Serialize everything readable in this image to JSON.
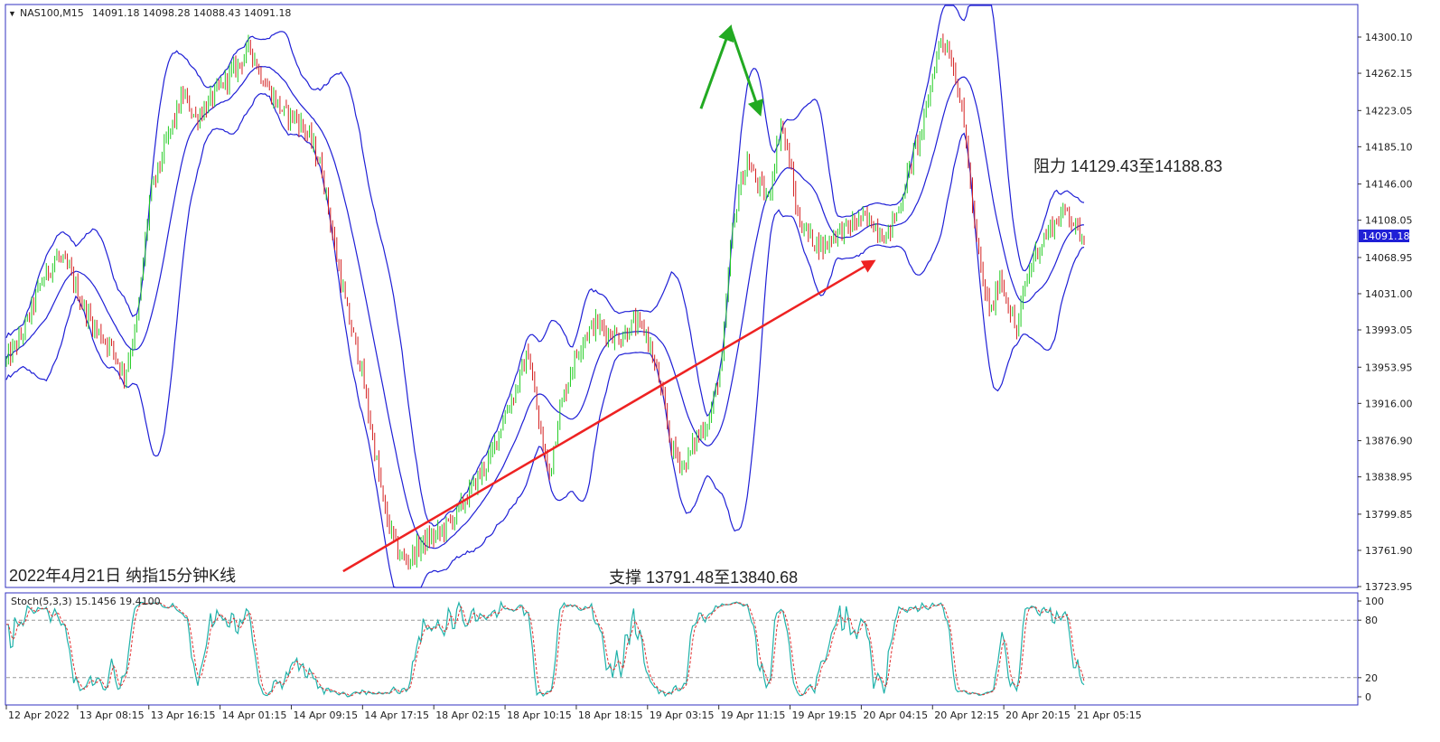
{
  "chart_data": {
    "type": "line",
    "title": "2022年4月21日 纳指15分钟K线",
    "header": {
      "symbol": "NAS100,M15",
      "ohlc": "14091.18 14098.28 14088.43 14091.18"
    },
    "current_price": 14091.18,
    "ylim": [
      13723.95,
      14319.0
    ],
    "y_ticks": [
      14300.1,
      14262.15,
      14223.05,
      14185.1,
      14146.0,
      14108.05,
      14068.95,
      14031.0,
      13993.05,
      13953.95,
      13916.0,
      13876.9,
      13838.95,
      13799.85,
      13761.9,
      13723.95
    ],
    "y_tick_labels": [
      "14300.10",
      "14262.15",
      "14223.05",
      "14185.10",
      "14146.00",
      "14108.05",
      "14068.95",
      "14031.00",
      "13993.05",
      "13953.95",
      "13916.00",
      "13876.90",
      "13838.95",
      "13799.85",
      "13761.90",
      "13723.95"
    ],
    "x_tick_labels": [
      "12 Apr 2022",
      "13 Apr 08:15",
      "13 Apr 16:15",
      "14 Apr 01:15",
      "14 Apr 09:15",
      "14 Apr 17:15",
      "18 Apr 02:15",
      "18 Apr 10:15",
      "18 Apr 18:15",
      "19 Apr 03:15",
      "19 Apr 11:15",
      "19 Apr 19:15",
      "20 Apr 04:15",
      "20 Apr 12:15",
      "20 Apr 20:15",
      "21 Apr 05:15"
    ],
    "price_path": [
      [
        0,
        13960
      ],
      [
        8,
        13990
      ],
      [
        16,
        14040
      ],
      [
        24,
        14070
      ],
      [
        30,
        14055
      ],
      [
        36,
        14020
      ],
      [
        42,
        13995
      ],
      [
        50,
        13975
      ],
      [
        56,
        13945
      ],
      [
        62,
        14000
      ],
      [
        68,
        14130
      ],
      [
        76,
        14190
      ],
      [
        84,
        14240
      ],
      [
        90,
        14215
      ],
      [
        96,
        14230
      ],
      [
        104,
        14255
      ],
      [
        110,
        14270
      ],
      [
        116,
        14290
      ],
      [
        120,
        14265
      ],
      [
        126,
        14240
      ],
      [
        132,
        14220
      ],
      [
        138,
        14215
      ],
      [
        144,
        14195
      ],
      [
        150,
        14160
      ],
      [
        156,
        14080
      ],
      [
        162,
        14010
      ],
      [
        168,
        13960
      ],
      [
        174,
        13880
      ],
      [
        180,
        13800
      ],
      [
        186,
        13760
      ],
      [
        190,
        13750
      ],
      [
        198,
        13770
      ],
      [
        206,
        13780
      ],
      [
        214,
        13800
      ],
      [
        222,
        13830
      ],
      [
        230,
        13860
      ],
      [
        236,
        13900
      ],
      [
        242,
        13930
      ],
      [
        248,
        13970
      ],
      [
        254,
        13880
      ],
      [
        258,
        13840
      ],
      [
        262,
        13900
      ],
      [
        268,
        13950
      ],
      [
        274,
        13985
      ],
      [
        280,
        14000
      ],
      [
        286,
        13990
      ],
      [
        292,
        13985
      ],
      [
        298,
        14000
      ],
      [
        304,
        13990
      ],
      [
        310,
        13940
      ],
      [
        316,
        13870
      ],
      [
        322,
        13850
      ],
      [
        328,
        13880
      ],
      [
        334,
        13900
      ],
      [
        340,
        13960
      ],
      [
        344,
        14080
      ],
      [
        348,
        14140
      ],
      [
        352,
        14170
      ],
      [
        356,
        14150
      ],
      [
        362,
        14130
      ],
      [
        368,
        14210
      ],
      [
        372,
        14170
      ],
      [
        376,
        14110
      ],
      [
        382,
        14090
      ],
      [
        388,
        14080
      ],
      [
        394,
        14095
      ],
      [
        400,
        14100
      ],
      [
        406,
        14110
      ],
      [
        412,
        14105
      ],
      [
        418,
        14090
      ],
      [
        424,
        14120
      ],
      [
        430,
        14170
      ],
      [
        436,
        14210
      ],
      [
        440,
        14260
      ],
      [
        444,
        14300
      ],
      [
        448,
        14285
      ],
      [
        452,
        14250
      ],
      [
        456,
        14190
      ],
      [
        460,
        14100
      ],
      [
        464,
        14040
      ],
      [
        468,
        14010
      ],
      [
        472,
        14050
      ],
      [
        476,
        14020
      ],
      [
        480,
        13990
      ],
      [
        484,
        14040
      ],
      [
        488,
        14070
      ],
      [
        492,
        14085
      ],
      [
        496,
        14100
      ],
      [
        500,
        14110
      ],
      [
        504,
        14120
      ],
      [
        508,
        14100
      ],
      [
        512,
        14091
      ]
    ],
    "x_end": 512,
    "stochastic": {
      "label": "Stoch(5,3,3) 15.1456 19.4100",
      "ylim": [
        0,
        100
      ],
      "levels": [
        20,
        80
      ],
      "tick_labels": [
        "100",
        "80",
        "20",
        "0"
      ],
      "tick_values": [
        100,
        80,
        20,
        0
      ],
      "main_color": "#20b2aa",
      "signal_color": "#e03030"
    },
    "annotations": {
      "resistance": "阻力 14129.43至14188.83",
      "support": "支撑 13791.48至13840.68"
    },
    "trendline": {
      "color": "#ee2222",
      "from": [
        160,
        13740
      ],
      "to": [
        412,
        14065
      ]
    },
    "peak_arrows": {
      "color": "#22aa22",
      "left": [
        330,
        14225
      ],
      "peak": [
        344,
        14310
      ],
      "right": [
        358,
        14220
      ]
    },
    "colors": {
      "bands": "#1f1fd6",
      "bull_candle": "#22cc22",
      "bear_candle": "#d42020",
      "grid_level": "#999999",
      "axis": "#3030c0",
      "price_tag_bg": "#1f1fd6"
    }
  }
}
